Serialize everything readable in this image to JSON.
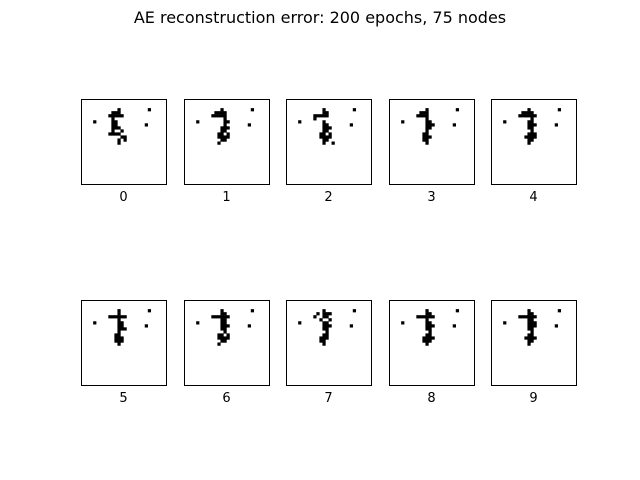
{
  "title": "AE reconstruction error: 200 epochs, 75 nodes",
  "colors": {
    "background": "#ffffff",
    "pixel": "#000000",
    "frame": "#000000"
  },
  "chart_data": {
    "type": "heatmap",
    "title": "AE reconstruction error: 200 epochs, 75 nodes",
    "layout": "2 rows x 5 columns of binary image panels",
    "grid": false,
    "panels": [
      {
        "label": "0",
        "rows": [
          ".....................",
          "..........#.........#",
          "........###.........",
          ".......#####........",
          "........#...........",
          "..#.....##..........",
          "........##.........#",
          "........###.........",
          "........#..#........",
          ".......####.........",
          "...........##.......",
          "..........#.#.......",
          "..........#.........",
          ".....................",
          "....................."
        ]
      },
      {
        "label": "1",
        "rows": [
          ".....................",
          "..........#.........#",
          "........####........",
          ".......#####........",
          "...........#........",
          "..#........##.......",
          "...........#.......#",
          "..........###.......",
          "..........##........",
          ".........##.#.......",
          ".........####.......",
          "..........##........",
          ".........#..........",
          ".....................",
          "....................."
        ]
      },
      {
        "label": "2",
        "rows": [
          ".....................",
          "..........#.........#",
          "..........##........",
          ".......#####........",
          ".......#............",
          "..#.......#.........",
          "..........##.......#",
          "..........###.......",
          "..........##........",
          ".........##.#.......",
          ".........####.......",
          "..........##........",
          "..........#..#......",
          ".....................",
          "....................."
        ]
      },
      {
        "label": "3",
        "rows": [
          ".....................",
          "..........#.........#",
          "........###.........",
          ".......####.........",
          "..........#.........",
          "..#.......##........",
          "..........###......#",
          "..........##........",
          "..........#.........",
          ".........##.........",
          ".........###.......",
          ".........##.........",
          "..........#.........",
          ".....................",
          "....................."
        ]
      },
      {
        "label": "4",
        "rows": [
          ".....................",
          "..........#.........#",
          "........####........",
          ".......######.......",
          "...........#........",
          "..#.......##........",
          "..........###......#",
          "..........##........",
          "...........#........",
          "..........###.......",
          ".........####.......",
          "..........##........",
          "..........#.........",
          ".....................",
          "....................."
        ]
      },
      {
        "label": "5",
        "rows": [
          ".....................",
          "..........#.........#",
          "..........#.........",
          ".......######.......",
          "..........#.........",
          "..#.......##........",
          "..........##.......#",
          "..........###.......",
          "..........#.........",
          ".........##.........",
          ".........###........",
          ".........###........",
          "..........#.........",
          ".....................",
          "....................."
        ]
      },
      {
        "label": "6",
        "rows": [
          ".....................",
          "..........#.........#",
          "..........##........",
          ".......######.......",
          "..........##........",
          "..#.......##........",
          "..........###......#",
          "..........##........",
          "...........#........",
          ".........##.#.......",
          ".........####.......",
          "..........##........",
          ".........#..........",
          ".....................",
          "....................."
        ]
      },
      {
        "label": "7",
        "rows": [
          ".....................",
          "..........#.........#",
          "........#.###.......",
          ".......#..##........",
          ".........#..#.......",
          "..#.......##........",
          "..........###......#",
          "..........##........",
          "...........#........",
          "..........##........",
          ".........###........",
          ".........##.........",
          "..........#.........",
          ".....................",
          "....................."
        ]
      },
      {
        "label": "8",
        "rows": [
          ".....................",
          "..........#.........#",
          "..........##........",
          ".......######.......",
          "..........#.........",
          "..#.......##........",
          "..........###......#",
          "..........##........",
          "...........#........",
          "..........##........",
          ".........####.......",
          ".........###........",
          "..........#.........",
          ".....................",
          "....................."
        ]
      },
      {
        "label": "9",
        "rows": [
          ".....................",
          "..........#.........#",
          "..........##........",
          ".......######.......",
          "..........##........",
          "..#.......###.......",
          "..........###......#",
          "..........##........",
          "...........#........",
          "..........##........",
          ".........####.......",
          "..........##........",
          "..........#.........",
          ".....................",
          "....................."
        ]
      }
    ]
  }
}
